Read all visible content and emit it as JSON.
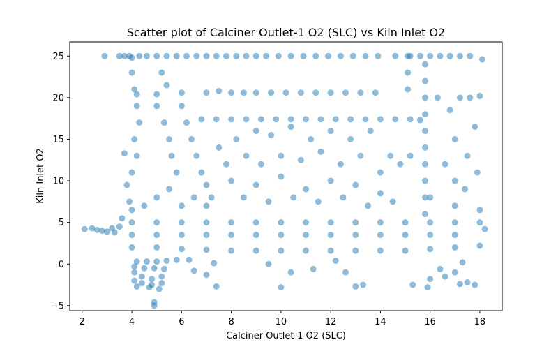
{
  "chart_data": {
    "type": "scatter",
    "title": "Scatter plot of Calciner Outlet-1 O2 (SLC) vs Kiln Inlet O2",
    "xlabel": "Calciner Outlet-1 O2 (SLC)",
    "ylabel": "Kiln Inlet O2",
    "xlim": [
      1.5,
      18.9
    ],
    "ylim": [
      -5.6,
      26.7
    ],
    "xticks": [
      2,
      4,
      6,
      8,
      10,
      12,
      14,
      16,
      18
    ],
    "yticks": [
      -5,
      0,
      5,
      10,
      15,
      20,
      25
    ],
    "grid": false,
    "legend": "none",
    "color": "#1f77b4",
    "alpha": 0.5,
    "points": [
      [
        2.1,
        4.2
      ],
      [
        2.4,
        4.3
      ],
      [
        2.6,
        4.1
      ],
      [
        2.8,
        4.0
      ],
      [
        3.0,
        3.9
      ],
      [
        3.2,
        4.3
      ],
      [
        3.3,
        3.8
      ],
      [
        2.9,
        25.0
      ],
      [
        3.5,
        25.0
      ],
      [
        3.7,
        25.0
      ],
      [
        3.9,
        25.0
      ],
      [
        4.0,
        24.8
      ],
      [
        4.3,
        25.0
      ],
      [
        4.6,
        25.0
      ],
      [
        5.0,
        25.0
      ],
      [
        5.4,
        25.0
      ],
      [
        5.8,
        25.0
      ],
      [
        6.2,
        25.0
      ],
      [
        6.6,
        25.0
      ],
      [
        7.0,
        25.0
      ],
      [
        7.4,
        25.0
      ],
      [
        7.8,
        25.0
      ],
      [
        8.2,
        25.0
      ],
      [
        8.6,
        25.0
      ],
      [
        9.0,
        25.0
      ],
      [
        9.4,
        25.0
      ],
      [
        9.9,
        25.0
      ],
      [
        10.4,
        25.0
      ],
      [
        10.9,
        25.0
      ],
      [
        11.4,
        25.0
      ],
      [
        11.9,
        25.0
      ],
      [
        12.4,
        25.0
      ],
      [
        12.9,
        25.0
      ],
      [
        13.4,
        25.0
      ],
      [
        13.9,
        25.0
      ],
      [
        14.6,
        25.0
      ],
      [
        15.2,
        25.0
      ],
      [
        15.6,
        25.0
      ],
      [
        16.0,
        25.0
      ],
      [
        16.4,
        25.0
      ],
      [
        16.8,
        25.0
      ],
      [
        17.2,
        25.0
      ],
      [
        17.6,
        25.0
      ],
      [
        18.1,
        24.6
      ],
      [
        4.2,
        20.4
      ],
      [
        5.0,
        20.4
      ],
      [
        6.0,
        20.6
      ],
      [
        7.0,
        20.6
      ],
      [
        7.5,
        20.8
      ],
      [
        8.0,
        20.6
      ],
      [
        8.5,
        20.6
      ],
      [
        9.0,
        20.6
      ],
      [
        9.6,
        20.6
      ],
      [
        10.2,
        20.6
      ],
      [
        10.8,
        20.6
      ],
      [
        11.4,
        20.6
      ],
      [
        12.0,
        20.6
      ],
      [
        12.6,
        20.6
      ],
      [
        13.2,
        20.6
      ],
      [
        13.8,
        20.6
      ],
      [
        6.8,
        17.4
      ],
      [
        7.4,
        17.4
      ],
      [
        8.0,
        17.4
      ],
      [
        8.6,
        17.4
      ],
      [
        9.2,
        17.4
      ],
      [
        9.8,
        17.4
      ],
      [
        10.4,
        17.4
      ],
      [
        11.0,
        17.4
      ],
      [
        11.6,
        17.4
      ],
      [
        12.2,
        17.4
      ],
      [
        12.8,
        17.4
      ],
      [
        13.4,
        17.4
      ],
      [
        14.0,
        17.4
      ],
      [
        14.6,
        17.4
      ],
      [
        15.2,
        17.4
      ],
      [
        15.6,
        17.3
      ],
      [
        15.8,
        24.0
      ],
      [
        15.8,
        22.0
      ],
      [
        15.8,
        20.0
      ],
      [
        15.8,
        18.0
      ],
      [
        15.8,
        16.0
      ],
      [
        15.8,
        14.0
      ],
      [
        15.8,
        12.0
      ],
      [
        15.8,
        10.0
      ],
      [
        15.8,
        8.0
      ],
      [
        15.8,
        6.0
      ],
      [
        15.1,
        25.0
      ],
      [
        15.1,
        23.0
      ],
      [
        15.1,
        21.0
      ],
      [
        4.0,
        23.0
      ],
      [
        4.1,
        21.0
      ],
      [
        4.2,
        19.0
      ],
      [
        4.3,
        17.0
      ],
      [
        4.1,
        15.0
      ],
      [
        4.2,
        13.0
      ],
      [
        4.0,
        11.0
      ],
      [
        3.7,
        13.3
      ],
      [
        3.8,
        9.5
      ],
      [
        3.9,
        7.5
      ],
      [
        3.6,
        5.5
      ],
      [
        3.5,
        4.5
      ],
      [
        5.2,
        23.0
      ],
      [
        5.4,
        21.5
      ],
      [
        5.0,
        19.0
      ],
      [
        5.3,
        17.0
      ],
      [
        5.5,
        15.0
      ],
      [
        5.6,
        13.0
      ],
      [
        5.8,
        11.0
      ],
      [
        6.0,
        19.0
      ],
      [
        6.2,
        17.0
      ],
      [
        6.4,
        15.0
      ],
      [
        6.6,
        13.0
      ],
      [
        6.8,
        11.0
      ],
      [
        7.0,
        9.5
      ],
      [
        7.5,
        14.0
      ],
      [
        7.8,
        12.0
      ],
      [
        8.2,
        15.0
      ],
      [
        8.6,
        13.0
      ],
      [
        9.0,
        16.0
      ],
      [
        9.2,
        12.0
      ],
      [
        9.6,
        15.5
      ],
      [
        10.0,
        13.0
      ],
      [
        10.4,
        16.5
      ],
      [
        10.8,
        12.5
      ],
      [
        11.2,
        15.0
      ],
      [
        11.6,
        13.5
      ],
      [
        12.0,
        16.0
      ],
      [
        12.4,
        12.0
      ],
      [
        12.8,
        15.0
      ],
      [
        13.2,
        13.0
      ],
      [
        13.6,
        16.0
      ],
      [
        14.0,
        11.0
      ],
      [
        14.4,
        13.0
      ],
      [
        14.8,
        12.0
      ],
      [
        15.2,
        13.0
      ],
      [
        16.3,
        20.0
      ],
      [
        16.8,
        18.5
      ],
      [
        17.2,
        20.0
      ],
      [
        17.6,
        20.0
      ],
      [
        18.0,
        20.2
      ],
      [
        17.0,
        15.0
      ],
      [
        17.5,
        13.0
      ],
      [
        17.8,
        16.5
      ],
      [
        16.6,
        12.0
      ],
      [
        17.0,
        10.0
      ],
      [
        17.4,
        9.0
      ],
      [
        17.9,
        11.0
      ],
      [
        8.0,
        10.0
      ],
      [
        9.0,
        9.5
      ],
      [
        10.0,
        10.5
      ],
      [
        11.0,
        9.0
      ],
      [
        12.0,
        10.0
      ],
      [
        13.0,
        9.5
      ],
      [
        14.0,
        8.5
      ],
      [
        7.2,
        8.0
      ],
      [
        8.5,
        8.0
      ],
      [
        9.5,
        7.5
      ],
      [
        10.5,
        8.0
      ],
      [
        11.5,
        7.5
      ],
      [
        12.5,
        8.0
      ],
      [
        13.5,
        7.0
      ],
      [
        14.5,
        7.5
      ],
      [
        16.0,
        8.0
      ],
      [
        17.0,
        7.0
      ],
      [
        18.0,
        6.5
      ],
      [
        4.0,
        6.5
      ],
      [
        4.5,
        7.0
      ],
      [
        5.0,
        8.0
      ],
      [
        5.5,
        9.0
      ],
      [
        6.0,
        7.0
      ],
      [
        6.5,
        8.0
      ],
      [
        7.0,
        7.0
      ],
      [
        4.0,
        5.0
      ],
      [
        5.0,
        5.0
      ],
      [
        6.0,
        5.0
      ],
      [
        7.0,
        5.0
      ],
      [
        8.0,
        5.0
      ],
      [
        9.0,
        5.0
      ],
      [
        10.0,
        5.0
      ],
      [
        11.0,
        5.0
      ],
      [
        12.0,
        5.0
      ],
      [
        13.0,
        5.0
      ],
      [
        14.0,
        5.0
      ],
      [
        15.0,
        5.0
      ],
      [
        16.0,
        5.0
      ],
      [
        17.0,
        5.0
      ],
      [
        18.0,
        5.0
      ],
      [
        4.0,
        3.5
      ],
      [
        5.0,
        3.5
      ],
      [
        6.0,
        3.5
      ],
      [
        7.0,
        3.5
      ],
      [
        8.0,
        3.5
      ],
      [
        9.0,
        3.5
      ],
      [
        10.0,
        3.5
      ],
      [
        11.0,
        3.5
      ],
      [
        12.0,
        3.5
      ],
      [
        13.0,
        3.5
      ],
      [
        14.0,
        3.5
      ],
      [
        15.0,
        3.5
      ],
      [
        16.0,
        3.5
      ],
      [
        17.0,
        3.5
      ],
      [
        18.2,
        4.2
      ],
      [
        4.0,
        2.0
      ],
      [
        5.0,
        2.0
      ],
      [
        6.0,
        1.8
      ],
      [
        7.0,
        1.7
      ],
      [
        8.0,
        1.6
      ],
      [
        9.0,
        1.6
      ],
      [
        10.0,
        1.6
      ],
      [
        11.0,
        1.6
      ],
      [
        12.0,
        1.6
      ],
      [
        13.0,
        1.6
      ],
      [
        14.0,
        1.6
      ],
      [
        15.0,
        1.6
      ],
      [
        16.0,
        1.8
      ],
      [
        17.0,
        2.0
      ],
      [
        18.0,
        2.2
      ],
      [
        4.2,
        0.3
      ],
      [
        4.6,
        0.3
      ],
      [
        5.0,
        0.3
      ],
      [
        5.4,
        0.4
      ],
      [
        5.8,
        0.5
      ],
      [
        4.1,
        -0.3
      ],
      [
        4.5,
        -0.5
      ],
      [
        4.9,
        -0.5
      ],
      [
        5.3,
        -0.6
      ],
      [
        4.1,
        -1.0
      ],
      [
        4.4,
        -1.5
      ],
      [
        4.8,
        -1.8
      ],
      [
        5.2,
        -1.5
      ],
      [
        4.1,
        -2.0
      ],
      [
        4.4,
        -2.3
      ],
      [
        4.8,
        -2.5
      ],
      [
        5.2,
        -2.3
      ],
      [
        4.2,
        -2.7
      ],
      [
        4.7,
        -2.8
      ],
      [
        5.1,
        -3.0
      ],
      [
        4.9,
        -4.6
      ],
      [
        4.9,
        -5.0
      ],
      [
        6.3,
        0.5
      ],
      [
        6.5,
        -0.8
      ],
      [
        7.0,
        -1.3
      ],
      [
        7.3,
        0.1
      ],
      [
        7.4,
        -2.7
      ],
      [
        9.5,
        0.0
      ],
      [
        10.4,
        -1.0
      ],
      [
        10.0,
        -2.8
      ],
      [
        11.3,
        -0.6
      ],
      [
        12.2,
        0.4
      ],
      [
        12.6,
        -1.0
      ],
      [
        13.0,
        -2.7
      ],
      [
        13.3,
        -2.5
      ],
      [
        15.3,
        -2.5
      ],
      [
        15.9,
        -2.8
      ],
      [
        16.0,
        -1.8
      ],
      [
        16.4,
        -0.6
      ],
      [
        16.6,
        -1.5
      ],
      [
        17.0,
        -1.0
      ],
      [
        17.2,
        -2.4
      ],
      [
        17.5,
        -2.2
      ],
      [
        17.8,
        -2.5
      ],
      [
        17.3,
        0.2
      ]
    ]
  }
}
